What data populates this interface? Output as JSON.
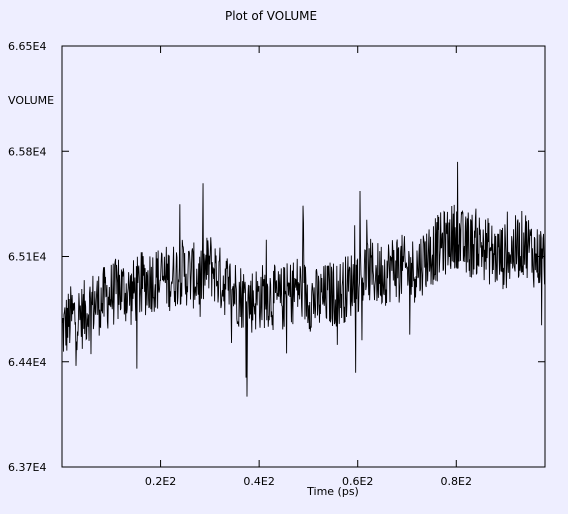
{
  "chart_data": {
    "type": "line",
    "title": "Plot of VOLUME",
    "xlabel": "Time (ps)",
    "ylabel": "VOLUME",
    "xlim": [
      0,
      98
    ],
    "ylim": [
      63700,
      66500
    ],
    "xticks": [
      {
        "value": 20,
        "label": "0.2E2"
      },
      {
        "value": 40,
        "label": "0.4E2"
      },
      {
        "value": 60,
        "label": "0.6E2"
      },
      {
        "value": 80,
        "label": "0.8E2"
      }
    ],
    "yticks": [
      {
        "value": 63700,
        "label": "6.37E4"
      },
      {
        "value": 64400,
        "label": "6.44E4"
      },
      {
        "value": 65100,
        "label": "6.51E4"
      },
      {
        "value": 65800,
        "label": "6.58E4"
      },
      {
        "value": 66500,
        "label": "6.65E4"
      }
    ],
    "grid": false,
    "legend": "none",
    "series": [
      {
        "x": [
          0,
          2,
          4,
          6,
          8,
          10,
          12,
          14,
          16,
          18,
          20,
          22,
          24,
          26,
          28,
          30,
          32,
          34,
          36,
          38,
          40,
          42,
          44,
          46,
          48,
          50,
          52,
          54,
          56,
          58,
          60,
          62,
          64,
          66,
          68,
          70,
          72,
          74,
          76,
          78,
          80,
          82,
          84,
          86,
          88,
          90,
          92,
          94,
          96,
          98
        ],
        "mean": [
          64600,
          64700,
          64700,
          64780,
          64800,
          64850,
          64880,
          64850,
          64900,
          64950,
          64950,
          64960,
          65000,
          64980,
          64950,
          65050,
          64950,
          64900,
          64850,
          64800,
          64830,
          64850,
          64800,
          64850,
          64900,
          64830,
          64800,
          64850,
          64850,
          64900,
          64950,
          65000,
          64980,
          65000,
          65050,
          65000,
          65020,
          65100,
          65150,
          65200,
          65250,
          65150,
          65200,
          65150,
          65100,
          65100,
          65150,
          65200,
          65100,
          65100
        ],
        "spread": 300,
        "color": "#000000"
      }
    ]
  }
}
